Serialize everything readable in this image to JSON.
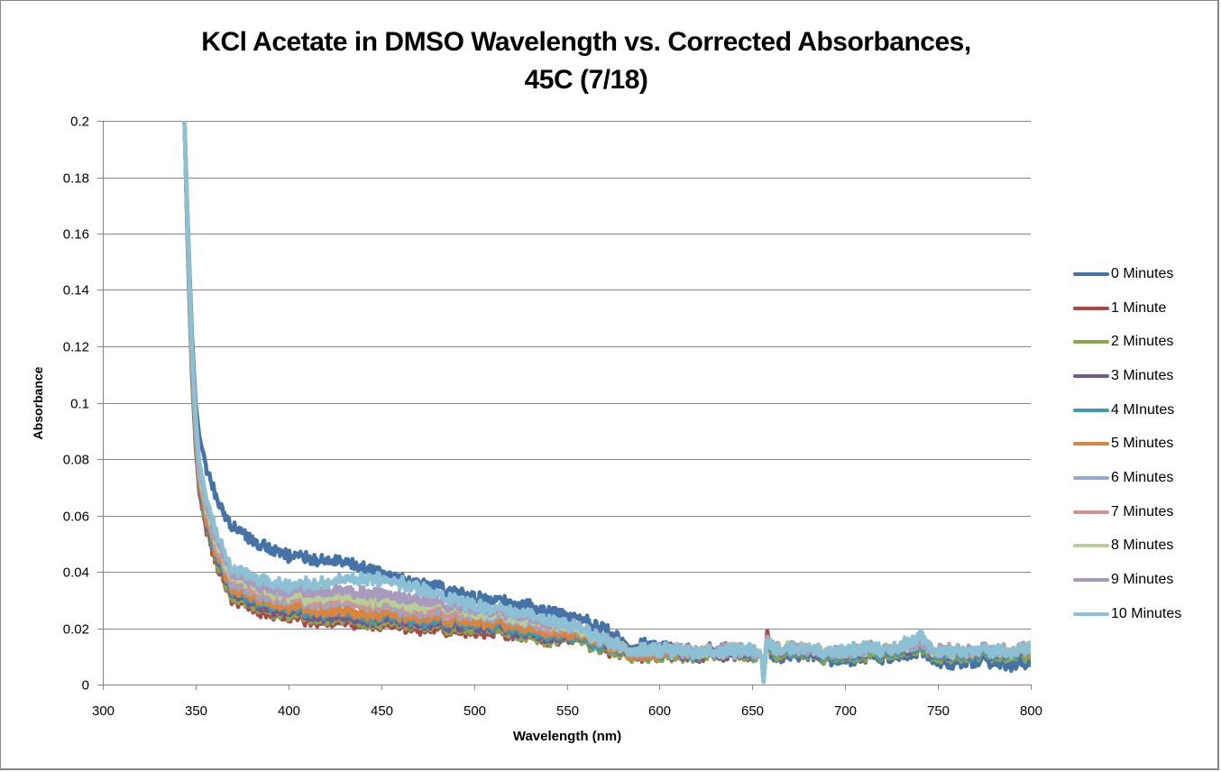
{
  "chart_data": {
    "type": "line",
    "title": "KCl Acetate in DMSO Wavelength vs. Corrected Absorbances,",
    "title_line2": "45C (7/18)",
    "xlabel": "Wavelength (nm)",
    "ylabel": "Absorbance",
    "xlim": [
      300,
      800
    ],
    "ylim": [
      0,
      0.2
    ],
    "x_ticks": [
      "300",
      "350",
      "400",
      "450",
      "500",
      "550",
      "600",
      "650",
      "700",
      "750",
      "800"
    ],
    "y_ticks": [
      "0",
      "0.02",
      "0.04",
      "0.06",
      "0.08",
      "0.1",
      "0.12",
      "0.14",
      "0.16",
      "0.18",
      "0.2"
    ],
    "grid": "horizontal",
    "legend_position": "right",
    "x": [
      344,
      346,
      348,
      350,
      352,
      355,
      360,
      365,
      370,
      380,
      390,
      400,
      410,
      420,
      430,
      440,
      450,
      460,
      470,
      480,
      490,
      500,
      510,
      520,
      530,
      540,
      550,
      560,
      570,
      580,
      590,
      600,
      610,
      620,
      630,
      640,
      650,
      655,
      656,
      658,
      660,
      670,
      680,
      690,
      700,
      710,
      720,
      730,
      740,
      750,
      760,
      770,
      780,
      790,
      800
    ],
    "series": [
      {
        "name": "0 Minutes",
        "color": "#4572A7",
        "values": [
          0.2,
          0.16,
          0.125,
          0.1,
          0.088,
          0.078,
          0.068,
          0.06,
          0.056,
          0.051,
          0.048,
          0.046,
          0.045,
          0.044,
          0.043,
          0.041,
          0.039,
          0.038,
          0.036,
          0.035,
          0.033,
          0.031,
          0.03,
          0.029,
          0.028,
          0.026,
          0.024,
          0.022,
          0.02,
          0.015,
          0.014,
          0.013,
          0.012,
          0.012,
          0.013,
          0.012,
          0.011,
          0.01,
          0.001,
          0.017,
          0.01,
          0.01,
          0.01,
          0.009,
          0.009,
          0.01,
          0.009,
          0.011,
          0.012,
          0.008,
          0.008,
          0.008,
          0.008,
          0.007,
          0.008
        ]
      },
      {
        "name": "1 Minute",
        "color": "#AA4643",
        "values": [
          0.2,
          0.15,
          0.11,
          0.085,
          0.068,
          0.056,
          0.045,
          0.036,
          0.03,
          0.027,
          0.025,
          0.024,
          0.023,
          0.022,
          0.022,
          0.021,
          0.021,
          0.021,
          0.02,
          0.02,
          0.019,
          0.019,
          0.018,
          0.018,
          0.017,
          0.016,
          0.016,
          0.015,
          0.013,
          0.011,
          0.01,
          0.01,
          0.01,
          0.01,
          0.011,
          0.011,
          0.01,
          0.01,
          0.001,
          0.019,
          0.011,
          0.011,
          0.011,
          0.011,
          0.011,
          0.011,
          0.011,
          0.013,
          0.014,
          0.011,
          0.011,
          0.011,
          0.011,
          0.011,
          0.012
        ]
      },
      {
        "name": "2 Minutes",
        "color": "#89A54E",
        "values": [
          0.2,
          0.15,
          0.111,
          0.086,
          0.069,
          0.057,
          0.046,
          0.037,
          0.031,
          0.028,
          0.026,
          0.025,
          0.024,
          0.023,
          0.023,
          0.022,
          0.022,
          0.022,
          0.021,
          0.021,
          0.02,
          0.02,
          0.019,
          0.018,
          0.017,
          0.016,
          0.016,
          0.015,
          0.013,
          0.011,
          0.01,
          0.01,
          0.01,
          0.01,
          0.011,
          0.011,
          0.01,
          0.01,
          0.001,
          0.017,
          0.011,
          0.011,
          0.01,
          0.01,
          0.01,
          0.011,
          0.01,
          0.012,
          0.013,
          0.01,
          0.01,
          0.01,
          0.01,
          0.01,
          0.011
        ]
      },
      {
        "name": "3 Minutes",
        "color": "#71588F",
        "values": [
          0.2,
          0.151,
          0.112,
          0.087,
          0.07,
          0.058,
          0.047,
          0.038,
          0.032,
          0.029,
          0.027,
          0.026,
          0.025,
          0.024,
          0.024,
          0.023,
          0.023,
          0.023,
          0.022,
          0.022,
          0.021,
          0.021,
          0.02,
          0.019,
          0.018,
          0.017,
          0.017,
          0.016,
          0.014,
          0.012,
          0.011,
          0.011,
          0.011,
          0.011,
          0.011,
          0.011,
          0.011,
          0.01,
          0.001,
          0.017,
          0.012,
          0.012,
          0.011,
          0.011,
          0.011,
          0.012,
          0.011,
          0.013,
          0.014,
          0.011,
          0.011,
          0.011,
          0.011,
          0.011,
          0.012
        ]
      },
      {
        "name": "4 MInutes",
        "color": "#4198AF",
        "values": [
          0.2,
          0.152,
          0.113,
          0.088,
          0.071,
          0.059,
          0.048,
          0.039,
          0.033,
          0.03,
          0.028,
          0.027,
          0.026,
          0.025,
          0.025,
          0.024,
          0.024,
          0.024,
          0.023,
          0.023,
          0.022,
          0.022,
          0.021,
          0.02,
          0.019,
          0.018,
          0.017,
          0.016,
          0.014,
          0.012,
          0.011,
          0.011,
          0.011,
          0.011,
          0.012,
          0.012,
          0.011,
          0.01,
          0.001,
          0.017,
          0.012,
          0.012,
          0.011,
          0.011,
          0.011,
          0.012,
          0.011,
          0.013,
          0.014,
          0.011,
          0.011,
          0.011,
          0.011,
          0.011,
          0.012
        ]
      },
      {
        "name": "5 Minutes",
        "color": "#DB843D",
        "values": [
          0.2,
          0.153,
          0.114,
          0.089,
          0.072,
          0.06,
          0.049,
          0.04,
          0.034,
          0.031,
          0.029,
          0.028,
          0.027,
          0.026,
          0.026,
          0.025,
          0.025,
          0.025,
          0.024,
          0.024,
          0.023,
          0.023,
          0.022,
          0.021,
          0.02,
          0.019,
          0.018,
          0.017,
          0.015,
          0.012,
          0.011,
          0.011,
          0.011,
          0.012,
          0.012,
          0.012,
          0.012,
          0.01,
          0.001,
          0.017,
          0.013,
          0.013,
          0.012,
          0.012,
          0.012,
          0.013,
          0.012,
          0.014,
          0.015,
          0.012,
          0.012,
          0.012,
          0.012,
          0.012,
          0.013
        ]
      },
      {
        "name": "6 Minutes",
        "color": "#93A9CF",
        "values": [
          0.2,
          0.154,
          0.116,
          0.091,
          0.074,
          0.062,
          0.051,
          0.042,
          0.036,
          0.033,
          0.031,
          0.03,
          0.029,
          0.029,
          0.029,
          0.028,
          0.028,
          0.027,
          0.026,
          0.026,
          0.025,
          0.025,
          0.024,
          0.023,
          0.022,
          0.021,
          0.02,
          0.018,
          0.016,
          0.013,
          0.012,
          0.012,
          0.012,
          0.012,
          0.012,
          0.012,
          0.012,
          0.01,
          0.001,
          0.017,
          0.013,
          0.013,
          0.012,
          0.012,
          0.012,
          0.013,
          0.012,
          0.014,
          0.015,
          0.012,
          0.012,
          0.012,
          0.012,
          0.012,
          0.013
        ]
      },
      {
        "name": "7 Minutes",
        "color": "#D19392",
        "values": [
          0.2,
          0.155,
          0.117,
          0.092,
          0.075,
          0.063,
          0.052,
          0.043,
          0.037,
          0.034,
          0.032,
          0.031,
          0.03,
          0.03,
          0.03,
          0.029,
          0.029,
          0.028,
          0.027,
          0.027,
          0.026,
          0.026,
          0.025,
          0.024,
          0.023,
          0.021,
          0.02,
          0.018,
          0.016,
          0.013,
          0.012,
          0.012,
          0.012,
          0.012,
          0.012,
          0.012,
          0.012,
          0.01,
          0.001,
          0.017,
          0.013,
          0.013,
          0.012,
          0.012,
          0.012,
          0.013,
          0.012,
          0.014,
          0.015,
          0.012,
          0.012,
          0.012,
          0.012,
          0.012,
          0.013
        ]
      },
      {
        "name": "8 Minutes",
        "color": "#B9CD96",
        "values": [
          0.2,
          0.156,
          0.118,
          0.093,
          0.076,
          0.064,
          0.053,
          0.044,
          0.038,
          0.035,
          0.033,
          0.032,
          0.031,
          0.031,
          0.031,
          0.03,
          0.03,
          0.029,
          0.028,
          0.028,
          0.027,
          0.026,
          0.025,
          0.024,
          0.023,
          0.022,
          0.02,
          0.018,
          0.016,
          0.013,
          0.012,
          0.012,
          0.012,
          0.012,
          0.012,
          0.012,
          0.012,
          0.01,
          0.001,
          0.017,
          0.013,
          0.013,
          0.012,
          0.012,
          0.012,
          0.013,
          0.012,
          0.014,
          0.015,
          0.012,
          0.012,
          0.012,
          0.012,
          0.012,
          0.013
        ]
      },
      {
        "name": "9 Minutes",
        "color": "#A99BBD",
        "values": [
          0.2,
          0.157,
          0.119,
          0.094,
          0.077,
          0.065,
          0.054,
          0.045,
          0.039,
          0.036,
          0.034,
          0.033,
          0.033,
          0.033,
          0.033,
          0.032,
          0.032,
          0.031,
          0.03,
          0.029,
          0.028,
          0.027,
          0.026,
          0.025,
          0.024,
          0.022,
          0.021,
          0.019,
          0.016,
          0.013,
          0.012,
          0.012,
          0.012,
          0.012,
          0.012,
          0.012,
          0.012,
          0.01,
          0.001,
          0.017,
          0.013,
          0.013,
          0.012,
          0.012,
          0.012,
          0.013,
          0.012,
          0.014,
          0.015,
          0.012,
          0.012,
          0.012,
          0.012,
          0.012,
          0.013
        ]
      },
      {
        "name": "10 Minutes",
        "color": "#8CC0D5",
        "values": [
          0.2,
          0.158,
          0.121,
          0.096,
          0.079,
          0.067,
          0.056,
          0.047,
          0.041,
          0.038,
          0.036,
          0.035,
          0.036,
          0.036,
          0.037,
          0.037,
          0.037,
          0.036,
          0.034,
          0.032,
          0.03,
          0.028,
          0.027,
          0.026,
          0.025,
          0.023,
          0.021,
          0.019,
          0.016,
          0.013,
          0.012,
          0.012,
          0.012,
          0.012,
          0.012,
          0.012,
          0.012,
          0.01,
          0.001,
          0.016,
          0.013,
          0.013,
          0.012,
          0.012,
          0.012,
          0.013,
          0.012,
          0.014,
          0.017,
          0.012,
          0.012,
          0.012,
          0.012,
          0.012,
          0.013
        ]
      }
    ]
  }
}
